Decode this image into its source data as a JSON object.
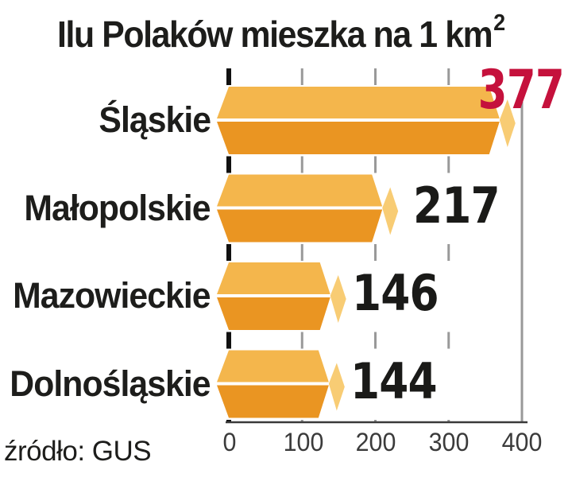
{
  "chart_data": {
    "type": "bar",
    "orientation": "horizontal",
    "title_main": "Ilu Polaków mieszka na 1 km",
    "title_sup": "2",
    "categories": [
      "Śląskie",
      "Małopolskie",
      "Mazowieckie",
      "Dolnośląskie"
    ],
    "values": [
      377,
      217,
      146,
      144
    ],
    "highlight_index": 0,
    "xticks": [
      0,
      100,
      200,
      300,
      400
    ],
    "xticklabels": [
      "0",
      "100",
      "200",
      "300",
      "400"
    ],
    "xlim": [
      0,
      400
    ],
    "grid": "dashed-vertical",
    "legend": false,
    "source": "źródło: GUS",
    "colors": {
      "bar_top": "#F4B64C",
      "bar_bottom": "#EA9522",
      "bar_facet": "#F8CC74",
      "highlight_value": "#C5113C",
      "value_text": "#1A1A18",
      "grid_line": "#999999",
      "zero_line": "#111111",
      "axis_line": "#3A3A3A"
    }
  }
}
